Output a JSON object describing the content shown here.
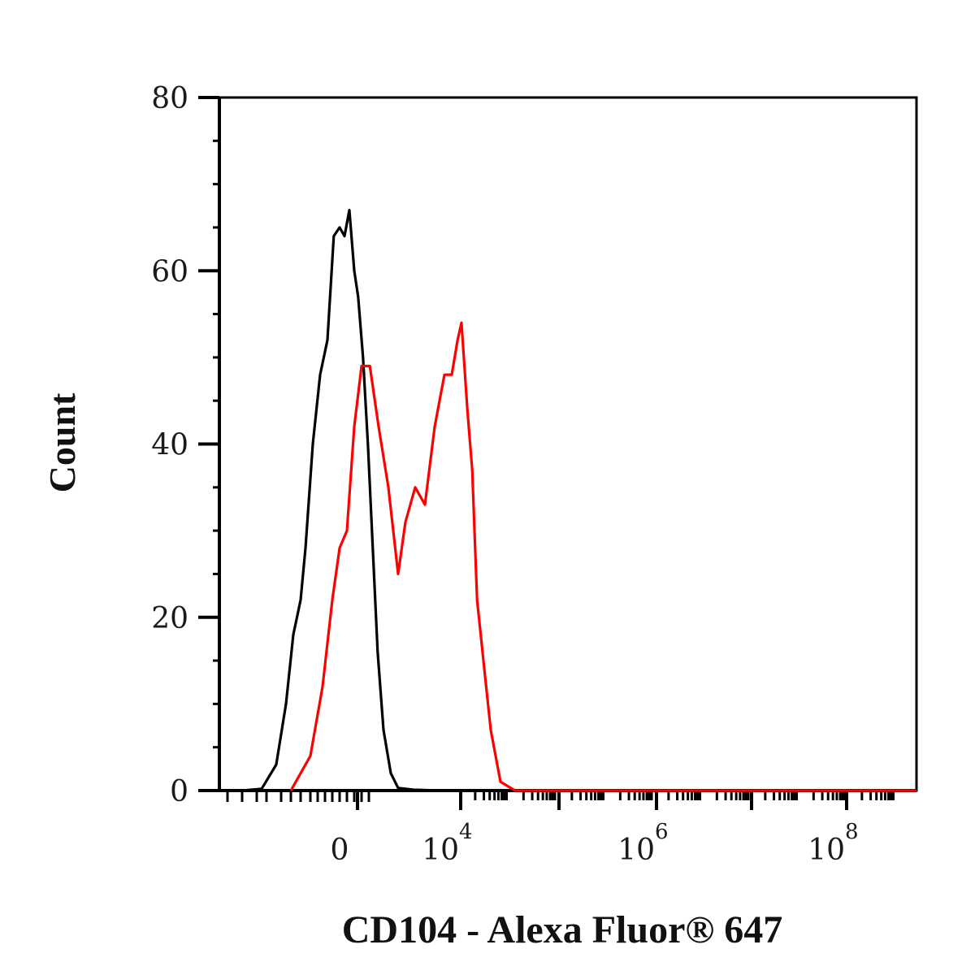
{
  "chart_data": {
    "type": "line",
    "xlabel": "CD104 - Alexa Fluor® 647",
    "ylabel": "Count",
    "ylim": [
      0,
      80
    ],
    "y_ticks": [
      0,
      20,
      40,
      60,
      80
    ],
    "x_scale": "biexponential",
    "x_ticks": [
      {
        "base": "0",
        "exp": ""
      },
      {
        "base": "10",
        "exp": "4"
      },
      {
        "base": "10",
        "exp": "6"
      },
      {
        "base": "10",
        "exp": "8"
      }
    ],
    "grid": false,
    "legend": "none",
    "series": [
      {
        "color": "#000000",
        "points": [
          [
            -2.0,
            0
          ],
          [
            -1.6,
            0.2
          ],
          [
            -1.3,
            3
          ],
          [
            -1.1,
            10
          ],
          [
            -0.95,
            18
          ],
          [
            -0.8,
            22
          ],
          [
            -0.7,
            28
          ],
          [
            -0.55,
            40
          ],
          [
            -0.4,
            48
          ],
          [
            -0.25,
            52
          ],
          [
            -0.12,
            64
          ],
          [
            0.0,
            65
          ],
          [
            0.1,
            64
          ],
          [
            0.2,
            67
          ],
          [
            0.3,
            60
          ],
          [
            0.38,
            57
          ],
          [
            0.48,
            50
          ],
          [
            0.58,
            40
          ],
          [
            0.68,
            28
          ],
          [
            0.78,
            16
          ],
          [
            0.9,
            7
          ],
          [
            1.05,
            2
          ],
          [
            1.2,
            0.3
          ],
          [
            1.5,
            0.1
          ],
          [
            2.0,
            0
          ]
        ]
      },
      {
        "color": "#ff0000",
        "points": [
          [
            -1.0,
            0
          ],
          [
            -0.6,
            4
          ],
          [
            -0.35,
            12
          ],
          [
            -0.15,
            22
          ],
          [
            0.0,
            28
          ],
          [
            0.15,
            30
          ],
          [
            0.3,
            42
          ],
          [
            0.45,
            49
          ],
          [
            0.62,
            49
          ],
          [
            0.8,
            42
          ],
          [
            1.0,
            35
          ],
          [
            1.2,
            25
          ],
          [
            1.35,
            31
          ],
          [
            1.55,
            35
          ],
          [
            1.75,
            33
          ],
          [
            1.95,
            42
          ],
          [
            2.15,
            48
          ],
          [
            2.3,
            48
          ],
          [
            2.42,
            52
          ],
          [
            2.5,
            54
          ],
          [
            2.62,
            44
          ],
          [
            2.72,
            37
          ],
          [
            2.82,
            22
          ],
          [
            2.95,
            15
          ],
          [
            3.1,
            7
          ],
          [
            3.3,
            1
          ],
          [
            3.6,
            0
          ],
          [
            6.0,
            0
          ]
        ]
      }
    ]
  }
}
